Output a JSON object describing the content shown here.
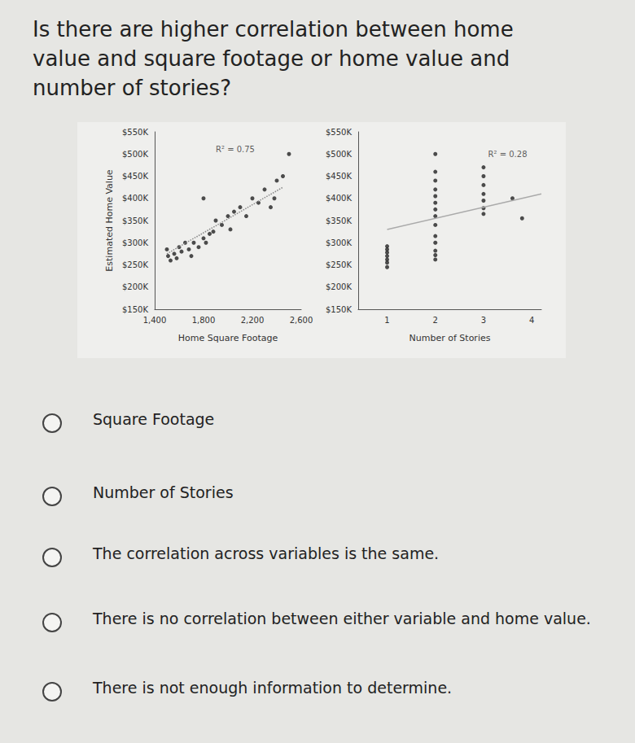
{
  "question": "Is there are higher correlation between home value and square footage or home value and number of stories?",
  "chart_data": [
    {
      "type": "scatter",
      "y_label": "Estimated Home Value",
      "x_label": "Home Square Footage",
      "xlim": [
        1400,
        2600
      ],
      "xticks": [
        {
          "value": 1400,
          "label": "1,400"
        },
        {
          "value": 1800,
          "label": "1,800"
        },
        {
          "value": 2200,
          "label": "2,200"
        },
        {
          "value": 2600,
          "label": "2,600"
        }
      ],
      "ylim": [
        150000,
        550000
      ],
      "yticks": [
        {
          "value": 150000,
          "label": "$150K"
        },
        {
          "value": 200000,
          "label": "$200K"
        },
        {
          "value": 250000,
          "label": "$250K"
        },
        {
          "value": 300000,
          "label": "$300K"
        },
        {
          "value": 350000,
          "label": "$350K"
        },
        {
          "value": 400000,
          "label": "$400K"
        },
        {
          "value": 450000,
          "label": "$450K"
        },
        {
          "value": 500000,
          "label": "$500K"
        },
        {
          "value": 550000,
          "label": "$550K"
        }
      ],
      "grid": false,
      "series": [
        {
          "type": "scatter",
          "color": "#222222",
          "marker": "circle",
          "x": [
            1500,
            1510,
            1530,
            1560,
            1580,
            1600,
            1620,
            1650,
            1680,
            1700,
            1720,
            1760,
            1800,
            1820,
            1850,
            1880,
            1900,
            1950,
            2000,
            2020,
            2050,
            2100,
            2150,
            2200,
            2250,
            2300,
            2350,
            2380,
            2400,
            2450,
            2500,
            1800
          ],
          "values": [
            285000,
            270000,
            260000,
            275000,
            265000,
            290000,
            280000,
            300000,
            285000,
            270000,
            300000,
            290000,
            310000,
            300000,
            320000,
            325000,
            350000,
            340000,
            360000,
            330000,
            370000,
            380000,
            360000,
            400000,
            390000,
            420000,
            380000,
            400000,
            440000,
            450000,
            500000,
            400000
          ]
        },
        {
          "type": "line",
          "color": "#888888",
          "line_style": "dotted",
          "x": [
            1500,
            2450
          ],
          "values": [
            275000,
            425000
          ]
        }
      ],
      "annotations": [
        {
          "text": "R² = 0.75",
          "x": 2060,
          "y": 510000
        }
      ]
    },
    {
      "type": "scatter",
      "x_label": "Number of Stories",
      "xlim": [
        0.4,
        4.2
      ],
      "xticks": [
        1,
        2,
        3,
        4
      ],
      "ylim": [
        150000,
        550000
      ],
      "yticks": [
        {
          "value": 150000,
          "label": "$150K"
        },
        {
          "value": 200000,
          "label": "$200K"
        },
        {
          "value": 250000,
          "label": "$250K"
        },
        {
          "value": 300000,
          "label": "$300K"
        },
        {
          "value": 350000,
          "label": "$350K"
        },
        {
          "value": 400000,
          "label": "$400K"
        },
        {
          "value": 450000,
          "label": "$450K"
        },
        {
          "value": 500000,
          "label": "$500K"
        },
        {
          "value": 550000,
          "label": "$550K"
        }
      ],
      "grid": false,
      "series": [
        {
          "type": "scatter",
          "color": "#222222",
          "marker": "circle",
          "x": [
            1,
            1,
            1,
            1,
            1,
            1,
            1,
            2,
            2,
            2,
            2,
            2,
            2,
            2,
            2,
            2,
            2,
            2,
            2,
            2,
            3,
            3,
            3,
            3,
            3,
            3,
            3,
            3.6,
            3.8,
            2
          ],
          "values": [
            245000,
            255000,
            262000,
            270000,
            278000,
            285000,
            292000,
            262000,
            272000,
            282000,
            300000,
            315000,
            340000,
            360000,
            375000,
            390000,
            405000,
            420000,
            440000,
            460000,
            365000,
            378000,
            395000,
            410000,
            430000,
            450000,
            470000,
            400000,
            355000,
            500000
          ]
        },
        {
          "type": "line",
          "color": "#aaaaaa",
          "line_style": "solid",
          "x": [
            1,
            4.2
          ],
          "values": [
            330000,
            410000
          ]
        }
      ],
      "annotations": [
        {
          "text": "R² = 0.28",
          "x": 3.5,
          "y": 500000
        }
      ]
    }
  ],
  "options": [
    "Square Footage",
    "Number of Stories",
    "The correlation across variables is the same.",
    "There is no correlation between either variable and home value.",
    "There is not enough information to determine."
  ]
}
